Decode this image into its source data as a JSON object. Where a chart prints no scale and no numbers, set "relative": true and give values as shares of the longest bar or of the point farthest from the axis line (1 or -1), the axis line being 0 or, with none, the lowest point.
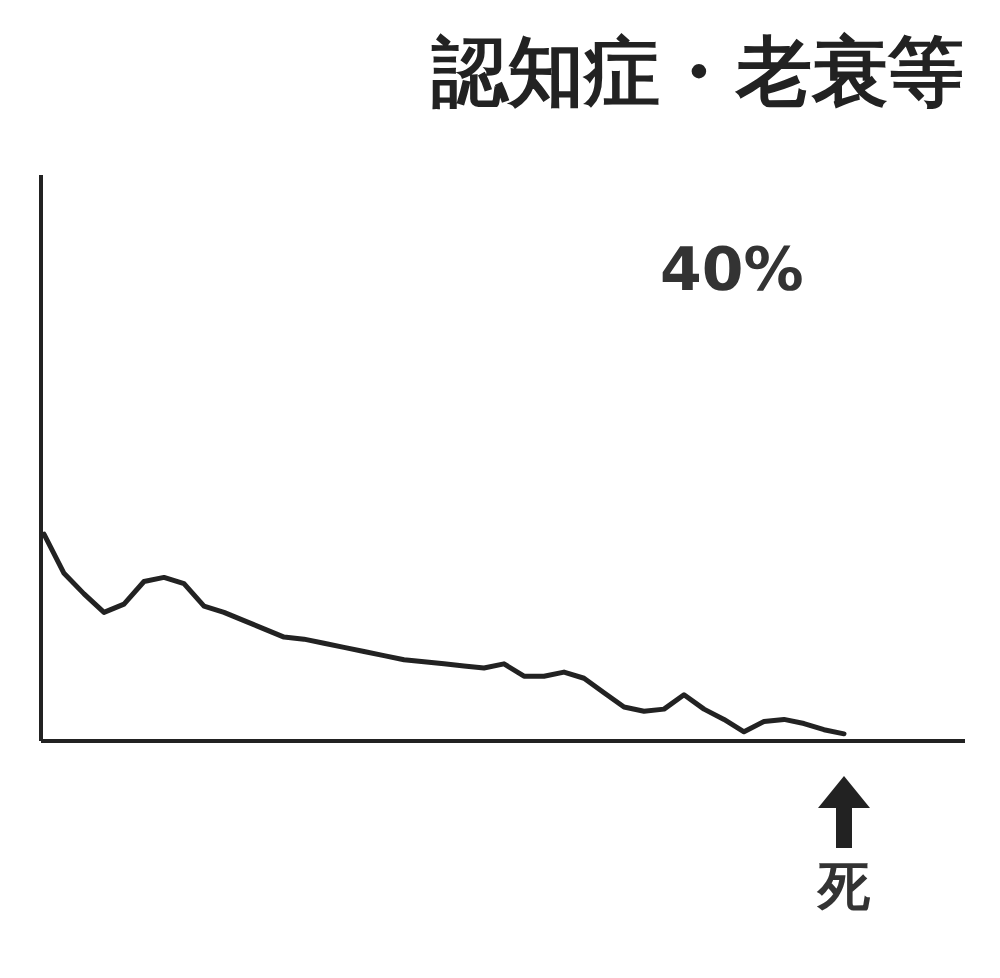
{
  "chart_data": {
    "type": "line",
    "title": "認知症・老衰等",
    "relative": true,
    "grid": false,
    "marker": "none",
    "line_style": "solid",
    "annotations": [
      "40%",
      "死"
    ],
    "categories": [
      null,
      null,
      null,
      null,
      null,
      null,
      null,
      null,
      null,
      null,
      null,
      null,
      null,
      null,
      null,
      null,
      null,
      null,
      null,
      null,
      null,
      null,
      null,
      null,
      null,
      null,
      null,
      null,
      null,
      null,
      null,
      null,
      null,
      null,
      null,
      null,
      null,
      null,
      null,
      null,
      null
    ],
    "series": [
      {
        "color": "#222222",
        "values": [
          1.0,
          0.81,
          0.71,
          0.62,
          0.66,
          0.77,
          0.79,
          0.76,
          0.65,
          0.62,
          0.58,
          0.54,
          0.5,
          0.49,
          0.47,
          0.45,
          0.43,
          0.41,
          0.39,
          0.38,
          0.37,
          0.36,
          0.35,
          0.37,
          0.31,
          0.31,
          0.33,
          0.3,
          0.23,
          0.16,
          0.14,
          0.15,
          0.22,
          0.15,
          0.1,
          0.04,
          0.09,
          0.1,
          0.08,
          0.05,
          0.03
        ]
      }
    ]
  }
}
